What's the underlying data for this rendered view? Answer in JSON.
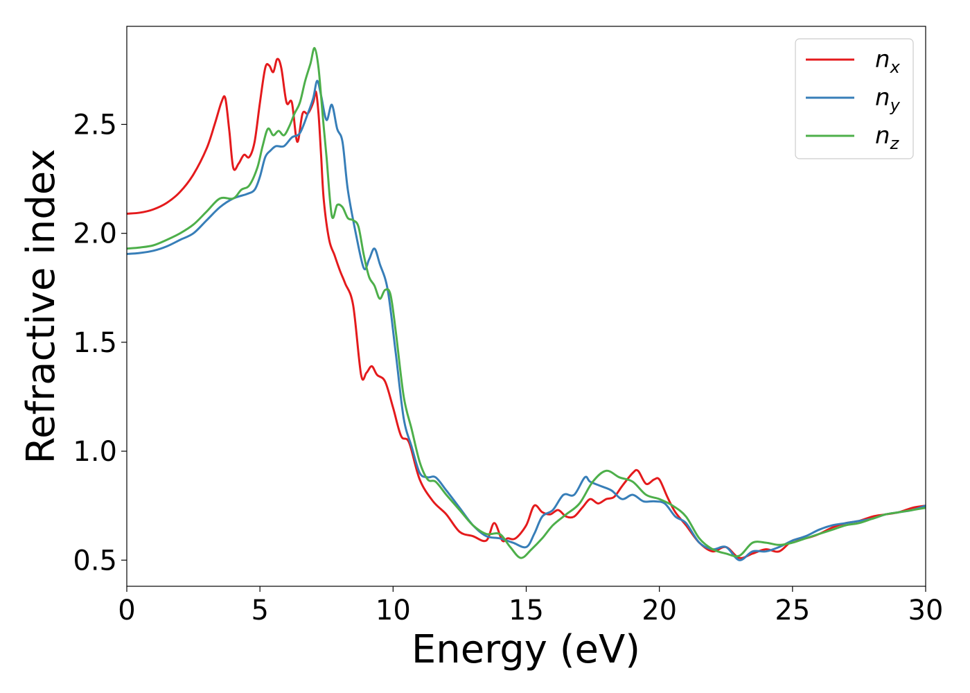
{
  "chart_data": {
    "type": "line",
    "title": "",
    "xlabel": "Energy (eV)",
    "ylabel": "Refractive index",
    "xlim": [
      0,
      30
    ],
    "ylim": [
      0.38,
      2.95
    ],
    "xticks": [
      0,
      5,
      10,
      15,
      20,
      25,
      30
    ],
    "yticks": [
      0.5,
      1.0,
      1.5,
      2.0,
      2.5
    ],
    "xtick_labels": [
      "0",
      "5",
      "10",
      "15",
      "20",
      "25",
      "30"
    ],
    "ytick_labels": [
      "0.5",
      "1.0",
      "1.5",
      "2.0",
      "2.5"
    ],
    "grid": false,
    "legend_position": "top-right",
    "series": [
      {
        "name": "n_x",
        "legend_main": "n",
        "legend_sub": "x",
        "color": "#e41a1c",
        "x": [
          0,
          0.5,
          1.0,
          1.5,
          2.0,
          2.5,
          3.0,
          3.3,
          3.55,
          3.7,
          3.85,
          4.0,
          4.2,
          4.4,
          4.6,
          4.8,
          5.0,
          5.2,
          5.35,
          5.5,
          5.65,
          5.8,
          6.0,
          6.2,
          6.4,
          6.6,
          6.8,
          7.0,
          7.1,
          7.2,
          7.3,
          7.4,
          7.6,
          7.8,
          8.0,
          8.2,
          8.5,
          8.8,
          9.0,
          9.2,
          9.4,
          9.7,
          10.0,
          10.3,
          10.6,
          11.0,
          11.5,
          12.0,
          12.5,
          13.0,
          13.5,
          13.8,
          14.1,
          14.3,
          14.6,
          15.0,
          15.3,
          15.6,
          15.9,
          16.2,
          16.5,
          16.8,
          17.1,
          17.4,
          17.7,
          18.0,
          18.3,
          18.6,
          19.0,
          19.2,
          19.5,
          19.8,
          20.0,
          20.3,
          20.6,
          21.0,
          21.5,
          22.0,
          22.5,
          23.0,
          23.5,
          24.0,
          24.5,
          25.0,
          25.5,
          26.0,
          26.5,
          27.0,
          27.5,
          28.0,
          28.5,
          29.0,
          29.5,
          30.0
        ],
        "y": [
          2.09,
          2.095,
          2.11,
          2.14,
          2.19,
          2.27,
          2.39,
          2.5,
          2.6,
          2.62,
          2.47,
          2.3,
          2.32,
          2.36,
          2.35,
          2.42,
          2.6,
          2.76,
          2.77,
          2.74,
          2.8,
          2.76,
          2.6,
          2.6,
          2.42,
          2.55,
          2.55,
          2.6,
          2.65,
          2.55,
          2.35,
          2.15,
          1.97,
          1.9,
          1.83,
          1.77,
          1.67,
          1.35,
          1.36,
          1.39,
          1.35,
          1.32,
          1.2,
          1.07,
          1.04,
          0.87,
          0.77,
          0.71,
          0.63,
          0.61,
          0.59,
          0.67,
          0.59,
          0.6,
          0.6,
          0.66,
          0.75,
          0.72,
          0.71,
          0.73,
          0.7,
          0.7,
          0.74,
          0.78,
          0.76,
          0.78,
          0.79,
          0.84,
          0.9,
          0.91,
          0.85,
          0.87,
          0.87,
          0.79,
          0.72,
          0.66,
          0.58,
          0.54,
          0.56,
          0.51,
          0.53,
          0.55,
          0.54,
          0.59,
          0.6,
          0.62,
          0.65,
          0.67,
          0.68,
          0.7,
          0.71,
          0.72,
          0.74,
          0.75
        ]
      },
      {
        "name": "n_y",
        "legend_main": "n",
        "legend_sub": "y",
        "color": "#377eb8",
        "x": [
          0,
          0.5,
          1.0,
          1.5,
          2.0,
          2.5,
          3.0,
          3.5,
          4.0,
          4.5,
          4.8,
          5.0,
          5.2,
          5.4,
          5.6,
          5.9,
          6.2,
          6.5,
          6.8,
          7.0,
          7.15,
          7.3,
          7.5,
          7.7,
          7.9,
          8.1,
          8.3,
          8.6,
          8.9,
          9.1,
          9.3,
          9.5,
          9.8,
          10.1,
          10.4,
          10.7,
          11.0,
          11.3,
          11.6,
          12.0,
          12.5,
          13.0,
          13.5,
          14.0,
          14.5,
          15.0,
          15.3,
          15.6,
          16.0,
          16.4,
          16.8,
          17.2,
          17.4,
          17.8,
          18.2,
          18.6,
          19.0,
          19.4,
          19.8,
          20.2,
          20.6,
          21.0,
          21.5,
          22.0,
          22.5,
          23.0,
          23.5,
          24.0,
          24.5,
          25.0,
          25.5,
          26.0,
          26.5,
          27.0,
          27.5,
          28.0,
          28.5,
          29.0,
          29.5,
          30.0
        ],
        "y": [
          1.905,
          1.91,
          1.92,
          1.94,
          1.97,
          2.0,
          2.06,
          2.12,
          2.16,
          2.18,
          2.2,
          2.26,
          2.35,
          2.38,
          2.4,
          2.4,
          2.44,
          2.46,
          2.55,
          2.62,
          2.7,
          2.63,
          2.52,
          2.59,
          2.48,
          2.42,
          2.2,
          2.0,
          1.84,
          1.88,
          1.93,
          1.86,
          1.74,
          1.45,
          1.15,
          1.02,
          0.9,
          0.88,
          0.88,
          0.82,
          0.74,
          0.66,
          0.61,
          0.6,
          0.58,
          0.56,
          0.62,
          0.7,
          0.73,
          0.8,
          0.8,
          0.88,
          0.86,
          0.84,
          0.82,
          0.78,
          0.8,
          0.77,
          0.77,
          0.76,
          0.7,
          0.67,
          0.58,
          0.55,
          0.56,
          0.5,
          0.54,
          0.54,
          0.56,
          0.59,
          0.61,
          0.64,
          0.66,
          0.67,
          0.68,
          0.69,
          0.71,
          0.72,
          0.73,
          0.75
        ]
      },
      {
        "name": "n_z",
        "legend_main": "n",
        "legend_sub": "z",
        "color": "#4daf4a",
        "x": [
          0,
          0.5,
          1.0,
          1.5,
          2.0,
          2.5,
          3.0,
          3.5,
          4.0,
          4.3,
          4.6,
          4.9,
          5.1,
          5.3,
          5.5,
          5.7,
          5.9,
          6.1,
          6.3,
          6.5,
          6.7,
          6.9,
          7.05,
          7.2,
          7.35,
          7.5,
          7.7,
          7.9,
          8.1,
          8.3,
          8.5,
          8.7,
          8.9,
          9.1,
          9.3,
          9.5,
          9.7,
          9.9,
          10.1,
          10.4,
          10.7,
          11.0,
          11.3,
          11.6,
          12.0,
          12.5,
          13.0,
          13.5,
          14.0,
          14.4,
          14.8,
          15.2,
          15.6,
          16.0,
          16.5,
          17.0,
          17.5,
          18.0,
          18.5,
          19.0,
          19.5,
          20.0,
          20.5,
          21.0,
          21.5,
          22.0,
          22.5,
          23.0,
          23.5,
          24.0,
          24.5,
          25.0,
          25.5,
          26.0,
          26.5,
          27.0,
          27.5,
          28.0,
          28.5,
          29.0,
          29.5,
          30.0
        ],
        "y": [
          1.93,
          1.935,
          1.945,
          1.97,
          2.0,
          2.04,
          2.1,
          2.16,
          2.16,
          2.2,
          2.22,
          2.3,
          2.4,
          2.48,
          2.45,
          2.47,
          2.45,
          2.49,
          2.55,
          2.6,
          2.7,
          2.78,
          2.85,
          2.76,
          2.55,
          2.35,
          2.08,
          2.13,
          2.12,
          2.07,
          2.06,
          2.03,
          1.9,
          1.8,
          1.76,
          1.7,
          1.74,
          1.72,
          1.55,
          1.25,
          1.1,
          0.95,
          0.87,
          0.86,
          0.8,
          0.73,
          0.66,
          0.62,
          0.62,
          0.56,
          0.51,
          0.55,
          0.6,
          0.66,
          0.71,
          0.76,
          0.86,
          0.91,
          0.88,
          0.86,
          0.8,
          0.78,
          0.75,
          0.7,
          0.6,
          0.55,
          0.53,
          0.52,
          0.58,
          0.58,
          0.57,
          0.58,
          0.6,
          0.62,
          0.64,
          0.66,
          0.67,
          0.69,
          0.71,
          0.72,
          0.73,
          0.74
        ]
      }
    ]
  }
}
